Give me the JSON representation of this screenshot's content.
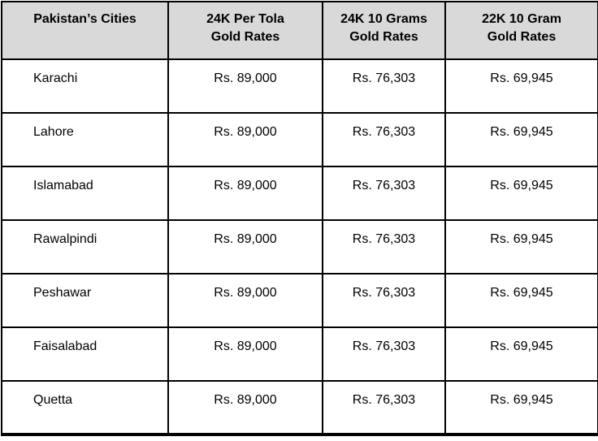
{
  "colors": {
    "header_bg": "#d9d9d9",
    "border": "#000000",
    "text": "#000000",
    "cell_bg": "#ffffff"
  },
  "table": {
    "headers": {
      "cities": "Pakistan’s Cities",
      "rate_24k_tola": "24K Per Tola\nGold Rates",
      "rate_24k_10g": "24K 10 Grams\nGold Rates",
      "rate_22k_10g": "22K 10 Gram\nGold Rates"
    },
    "rows": [
      {
        "city": "Karachi",
        "rate_24k_tola": "Rs. 89,000",
        "rate_24k_10g": "Rs. 76,303",
        "rate_22k_10g": "Rs. 69,945"
      },
      {
        "city": "Lahore",
        "rate_24k_tola": "Rs. 89,000",
        "rate_24k_10g": "Rs. 76,303",
        "rate_22k_10g": "Rs. 69,945"
      },
      {
        "city": "Islamabad",
        "rate_24k_tola": "Rs. 89,000",
        "rate_24k_10g": "Rs. 76,303",
        "rate_22k_10g": "Rs. 69,945"
      },
      {
        "city": "Rawalpindi",
        "rate_24k_tola": "Rs. 89,000",
        "rate_24k_10g": "Rs. 76,303",
        "rate_22k_10g": "Rs. 69,945"
      },
      {
        "city": "Peshawar",
        "rate_24k_tola": "Rs. 89,000",
        "rate_24k_10g": "Rs. 76,303",
        "rate_22k_10g": "Rs. 69,945"
      },
      {
        "city": "Faisalabad",
        "rate_24k_tola": "Rs. 89,000",
        "rate_24k_10g": "Rs. 76,303",
        "rate_22k_10g": "Rs. 69,945"
      },
      {
        "city": "Quetta",
        "rate_24k_tola": "Rs. 89,000",
        "rate_24k_10g": "Rs. 76,303",
        "rate_22k_10g": "Rs. 69,945"
      }
    ]
  }
}
